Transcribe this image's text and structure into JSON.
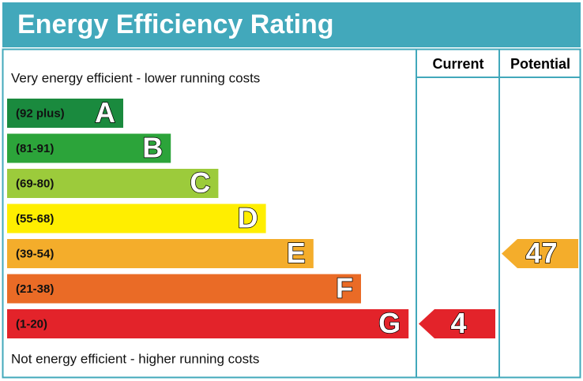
{
  "header": {
    "title": "Energy Efficiency Rating"
  },
  "columns": [
    "Current",
    "Potential"
  ],
  "top_label": "Very energy efficient - lower running costs",
  "bottom_label": "Not energy efficient - higher running costs",
  "bands": [
    {
      "range": "(92 plus)",
      "letter": "A",
      "color": "#1a8a3e"
    },
    {
      "range": "(81-91)",
      "letter": "B",
      "color": "#2ca43a"
    },
    {
      "range": "(69-80)",
      "letter": "C",
      "color": "#9ccb3b"
    },
    {
      "range": "(55-68)",
      "letter": "D",
      "color": "#ffee00"
    },
    {
      "range": "(39-54)",
      "letter": "E",
      "color": "#f4ad2b"
    },
    {
      "range": "(21-38)",
      "letter": "F",
      "color": "#ea6b26"
    },
    {
      "range": "(1-20)",
      "letter": "G",
      "color": "#e3232a"
    }
  ],
  "ratings": [
    {
      "value": 4,
      "color": "#e3232a"
    },
    {
      "value": 47,
      "color": "#f4ad2b"
    }
  ]
}
